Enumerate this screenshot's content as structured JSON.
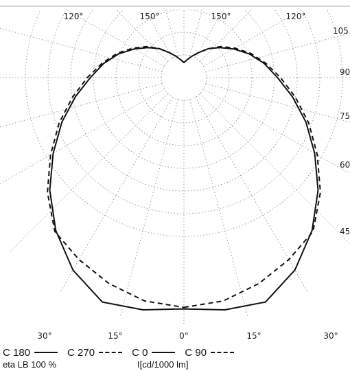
{
  "chart_data": {
    "type": "polar",
    "angle_labels_top": [
      "120°",
      "150°",
      "150°",
      "120°"
    ],
    "angle_labels_bottom": [
      "30°",
      "15°",
      "0°",
      "15°",
      "30°"
    ],
    "radial_labels": [
      "105",
      "90",
      "75",
      "60",
      "45"
    ],
    "radial_ticks": [
      15,
      30,
      45,
      60,
      75,
      90,
      105
    ],
    "radial_lines_deg": [
      -165,
      -150,
      -135,
      -120,
      -105,
      -90,
      -75,
      -60,
      -45,
      -30,
      -15,
      0,
      15,
      30,
      45,
      60,
      75,
      90,
      105,
      120,
      135,
      150,
      165,
      180
    ],
    "grid_style": "dotted",
    "series": [
      {
        "name": "C 0 / C 180",
        "style": "solid",
        "theta": [
          0,
          10,
          20,
          30,
          40,
          50,
          60,
          70,
          80,
          90,
          100,
          110,
          120,
          130,
          140,
          150,
          160,
          170,
          180
        ],
        "r": [
          153,
          156,
          158,
          147,
          132,
          116,
          100,
          86,
          73,
          62,
          54,
          46,
          38,
          31,
          25,
          19,
          15,
          12,
          10
        ]
      },
      {
        "name": "C 90 / C 270",
        "style": "dashed",
        "theta": [
          0,
          10,
          20,
          30,
          40,
          50,
          60,
          70,
          80,
          90,
          100,
          110,
          120,
          130,
          140,
          150,
          160,
          170,
          180
        ],
        "r": [
          152,
          150,
          145,
          139,
          133,
          118,
          102,
          88,
          75,
          64,
          55,
          47,
          39,
          32,
          25,
          19,
          15,
          12,
          10
        ]
      }
    ]
  },
  "legend": [
    {
      "label": "C 180",
      "style": "solid"
    },
    {
      "label": "C 270",
      "style": "dashed"
    },
    {
      "label": "C 0",
      "style": "solid"
    },
    {
      "label": "C 90",
      "style": "dashed"
    }
  ],
  "footer": {
    "efficiency": "eta LB 100 %",
    "unit": "I[cd/1000 lm]"
  }
}
